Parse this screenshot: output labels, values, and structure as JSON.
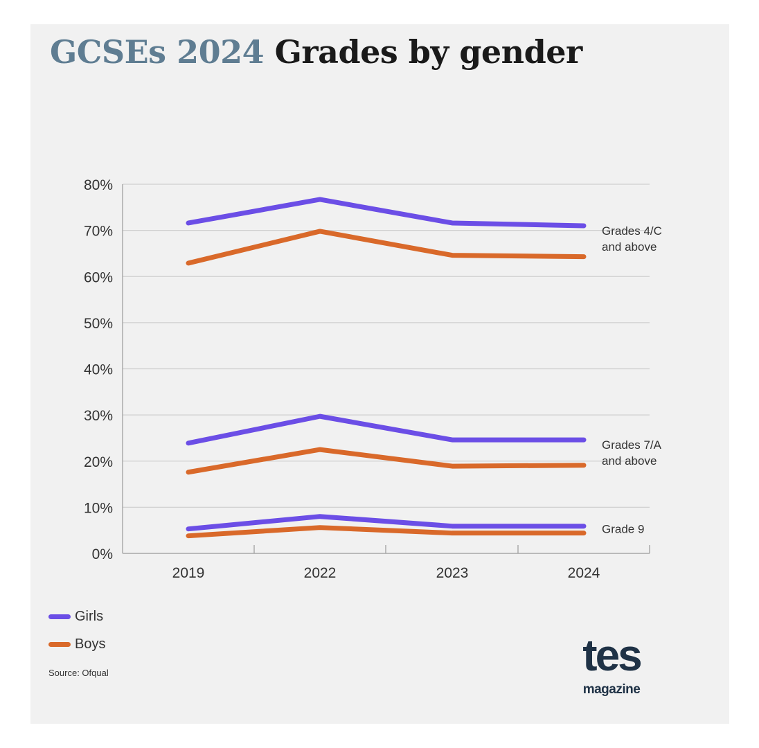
{
  "title": {
    "highlight": "GCSEs 2024",
    "rest": "Grades by gender"
  },
  "legend": [
    {
      "label": "Girls",
      "color": "#6b4ee6"
    },
    {
      "label": "Boys",
      "color": "#d9692a"
    }
  ],
  "source": "Source: Ofqual",
  "logo": {
    "main": "tes",
    "sub": "magazine"
  },
  "chart_data": {
    "type": "line",
    "title": "GCSEs 2024 Grades by gender",
    "categories": [
      "2019",
      "2022",
      "2023",
      "2024"
    ],
    "ylim": [
      0,
      80
    ],
    "yticks": [
      0,
      10,
      20,
      30,
      40,
      50,
      60,
      70,
      80
    ],
    "ytick_labels": [
      "0%",
      "10%",
      "20%",
      "30%",
      "40%",
      "50%",
      "60%",
      "70%",
      "80%"
    ],
    "grid": true,
    "legend_position": "bottom-left",
    "groups": [
      {
        "label": [
          "Grades 4/C",
          "and above"
        ],
        "series": [
          {
            "name": "Girls",
            "values": [
              71.6,
              76.7,
              71.6,
              71.0
            ]
          },
          {
            "name": "Boys",
            "values": [
              62.9,
              69.8,
              64.6,
              64.3
            ]
          }
        ]
      },
      {
        "label": [
          "Grades 7/A",
          "and above"
        ],
        "series": [
          {
            "name": "Girls",
            "values": [
              23.9,
              29.7,
              24.6,
              24.6
            ]
          },
          {
            "name": "Boys",
            "values": [
              17.6,
              22.5,
              18.9,
              19.1
            ]
          }
        ]
      },
      {
        "label": [
          "Grade 9"
        ],
        "series": [
          {
            "name": "Girls",
            "values": [
              5.3,
              8.0,
              5.9,
              5.9
            ]
          },
          {
            "name": "Boys",
            "values": [
              3.8,
              5.6,
              4.4,
              4.4
            ]
          }
        ]
      }
    ]
  }
}
